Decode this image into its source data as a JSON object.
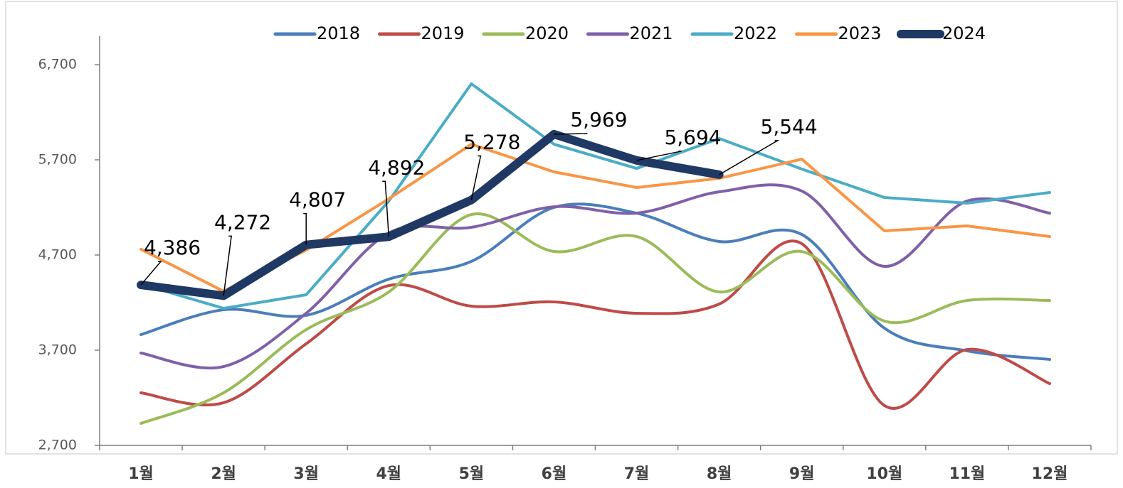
{
  "chart_data": {
    "type": "line",
    "categories": [
      "1월",
      "2월",
      "3월",
      "4월",
      "5월",
      "6월",
      "7월",
      "8월",
      "9월",
      "10월",
      "11월",
      "12월"
    ],
    "ylim": [
      2700,
      6700
    ],
    "yticks": [
      {
        "value": 2700,
        "label": "2,700"
      },
      {
        "value": 3700,
        "label": "3,700"
      },
      {
        "value": 4700,
        "label": "4,700"
      },
      {
        "value": 5700,
        "label": "5,700"
      },
      {
        "value": 6700,
        "label": "6,700"
      }
    ],
    "grid": false,
    "legend": "top",
    "series": [
      {
        "name": "2018",
        "color": "#4a7ebb",
        "smooth": true,
        "values": [
          3864,
          4125,
          4066,
          4446,
          4633,
          5200,
          5140,
          4842,
          4916,
          3931,
          3693,
          3603
        ]
      },
      {
        "name": "2019",
        "color": "#be4b48",
        "smooth": true,
        "values": [
          3252,
          3148,
          3767,
          4379,
          4163,
          4207,
          4088,
          4185,
          4819,
          3118,
          3707,
          3349
        ]
      },
      {
        "name": "2020",
        "color": "#9bbb59",
        "smooth": true,
        "values": [
          2931,
          3252,
          3916,
          4312,
          5125,
          4737,
          4894,
          4312,
          4737,
          4006,
          4222,
          4222
        ]
      },
      {
        "name": "2021",
        "color": "#7f60a8",
        "smooth": true,
        "values": [
          3670,
          3528,
          4088,
          4931,
          4991,
          5207,
          5140,
          5364,
          5372,
          4581,
          5267,
          5140
        ]
      },
      {
        "name": "2022",
        "color": "#4bacc6",
        "smooth": false,
        "values": [
          4394,
          4140,
          4282,
          5267,
          6499,
          5864,
          5610,
          5924,
          5603,
          5304,
          5245,
          5357
        ]
      },
      {
        "name": "2023",
        "color": "#f79646",
        "smooth": false,
        "values": [
          4760,
          4319,
          4752,
          5290,
          5864,
          5573,
          5409,
          5506,
          5707,
          4954,
          5006,
          4894
        ]
      },
      {
        "name": "2024",
        "color": "#1f3864",
        "smooth": false,
        "width": 12,
        "values": [
          4386,
          4272,
          4807,
          4892,
          5278,
          5969,
          5694,
          5544,
          null,
          null,
          null,
          null
        ],
        "value_labels": [
          "4,386",
          "4,272",
          "4,807",
          "4,892",
          "5,278",
          "5,969",
          "5,694",
          "5,544",
          null,
          null,
          null,
          null
        ]
      }
    ]
  }
}
